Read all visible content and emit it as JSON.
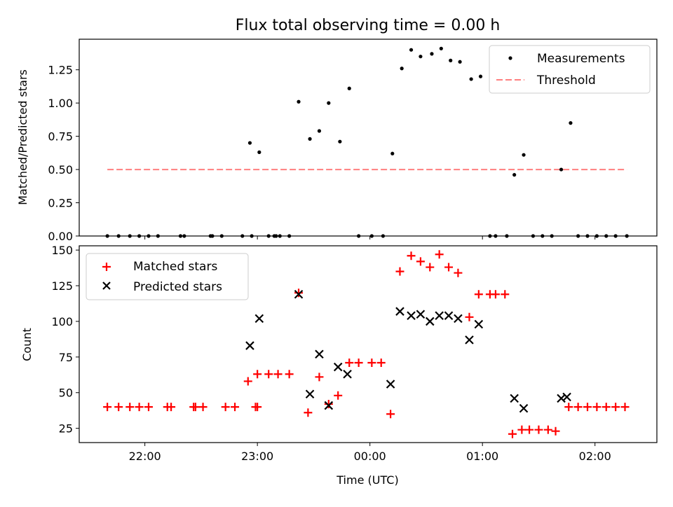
{
  "chart_data": [
    {
      "type": "scatter",
      "title": "Flux total observing time = 0.00 h",
      "xlabel": "",
      "ylabel": "Matched/Predicted stars",
      "xlim": [
        "21:25",
        "02:33"
      ],
      "ylim": [
        0,
        1.48
      ],
      "yticks": [
        "0.00",
        "0.25",
        "0.50",
        "0.75",
        "1.00",
        "1.25"
      ],
      "grid": false,
      "legend_position": "top-right",
      "threshold": {
        "name": "Threshold",
        "color": "#ff7f7f",
        "value": 0.5,
        "x_start": "21:40",
        "x_end": "02:17"
      },
      "series": [
        {
          "name": "Measurements",
          "color": "#000000",
          "marker": "dot",
          "points": [
            [
              "21:40",
              0.0
            ],
            [
              "21:46",
              0.0
            ],
            [
              "21:52",
              0.0
            ],
            [
              "21:57",
              0.0
            ],
            [
              "22:02",
              0.0
            ],
            [
              "22:07",
              0.0
            ],
            [
              "22:19",
              0.0
            ],
            [
              "22:21",
              0.0
            ],
            [
              "22:35",
              0.0
            ],
            [
              "22:36",
              0.0
            ],
            [
              "22:41",
              0.0
            ],
            [
              "22:52",
              0.0
            ],
            [
              "22:57",
              0.0
            ],
            [
              "23:09",
              0.0
            ],
            [
              "23:10",
              0.0
            ],
            [
              "22:56",
              0.7
            ],
            [
              "23:01",
              0.63
            ],
            [
              "23:06",
              0.0
            ],
            [
              "23:12",
              0.0
            ],
            [
              "23:17",
              0.0
            ],
            [
              "23:22",
              1.01
            ],
            [
              "23:28",
              0.73
            ],
            [
              "23:33",
              0.79
            ],
            [
              "23:38",
              1.0
            ],
            [
              "23:44",
              0.71
            ],
            [
              "23:49",
              1.11
            ],
            [
              "23:54",
              0.0
            ],
            [
              "00:01",
              0.0
            ],
            [
              "00:07",
              0.0
            ],
            [
              "00:12",
              0.62
            ],
            [
              "00:17",
              1.26
            ],
            [
              "00:22",
              1.4
            ],
            [
              "00:27",
              1.35
            ],
            [
              "00:33",
              1.37
            ],
            [
              "00:38",
              1.41
            ],
            [
              "00:43",
              1.32
            ],
            [
              "00:48",
              1.31
            ],
            [
              "00:54",
              1.18
            ],
            [
              "00:59",
              1.2
            ],
            [
              "01:04",
              0.0
            ],
            [
              "01:07",
              0.0
            ],
            [
              "01:13",
              0.0
            ],
            [
              "01:17",
              0.46
            ],
            [
              "01:22",
              0.61
            ],
            [
              "01:27",
              0.0
            ],
            [
              "01:32",
              0.0
            ],
            [
              "01:37",
              0.0
            ],
            [
              "01:42",
              0.5
            ],
            [
              "01:47",
              0.85
            ],
            [
              "01:51",
              0.0
            ],
            [
              "01:56",
              0.0
            ],
            [
              "02:01",
              0.0
            ],
            [
              "02:06",
              0.0
            ],
            [
              "02:11",
              0.0
            ],
            [
              "02:17",
              0.0
            ]
          ]
        }
      ]
    },
    {
      "type": "scatter",
      "title": "",
      "xlabel": "Time (UTC)",
      "ylabel": "Count",
      "xlim": [
        "21:25",
        "02:33"
      ],
      "ylim": [
        15,
        153
      ],
      "xticks": [
        "22:00",
        "23:00",
        "00:00",
        "01:00",
        "02:00"
      ],
      "yticks": [
        "25",
        "50",
        "75",
        "100",
        "125",
        "150"
      ],
      "grid": false,
      "legend_position": "top-left",
      "series": [
        {
          "name": "Matched stars",
          "color": "#ff0000",
          "marker": "plus",
          "points": [
            [
              "21:40",
              40
            ],
            [
              "21:46",
              40
            ],
            [
              "21:52",
              40
            ],
            [
              "21:57",
              40
            ],
            [
              "22:02",
              40
            ],
            [
              "22:12",
              40
            ],
            [
              "22:14",
              40
            ],
            [
              "22:26",
              40
            ],
            [
              "22:27",
              40
            ],
            [
              "22:31",
              40
            ],
            [
              "22:43",
              40
            ],
            [
              "22:48",
              40
            ],
            [
              "22:59",
              40
            ],
            [
              "23:00",
              40
            ],
            [
              "22:55",
              58
            ],
            [
              "23:00",
              63
            ],
            [
              "23:06",
              63
            ],
            [
              "23:11",
              63
            ],
            [
              "23:17",
              63
            ],
            [
              "23:22",
              120
            ],
            [
              "23:27",
              36
            ],
            [
              "23:33",
              61
            ],
            [
              "23:38",
              42
            ],
            [
              "23:43",
              48
            ],
            [
              "23:49",
              71
            ],
            [
              "23:54",
              71
            ],
            [
              "00:01",
              71
            ],
            [
              "00:06",
              71
            ],
            [
              "00:11",
              35
            ],
            [
              "00:16",
              135
            ],
            [
              "00:22",
              146
            ],
            [
              "00:27",
              142
            ],
            [
              "00:32",
              138
            ],
            [
              "00:37",
              147
            ],
            [
              "00:42",
              138
            ],
            [
              "00:47",
              134
            ],
            [
              "00:53",
              103
            ],
            [
              "00:58",
              119
            ],
            [
              "01:04",
              119
            ],
            [
              "01:07",
              119
            ],
            [
              "01:12",
              119
            ],
            [
              "01:16",
              21
            ],
            [
              "01:21",
              24
            ],
            [
              "01:25",
              24
            ],
            [
              "01:30",
              24
            ],
            [
              "01:35",
              24
            ],
            [
              "01:39",
              23
            ],
            [
              "01:46",
              40
            ],
            [
              "01:51",
              40
            ],
            [
              "01:56",
              40
            ],
            [
              "02:01",
              40
            ],
            [
              "02:06",
              40
            ],
            [
              "02:11",
              40
            ],
            [
              "02:16",
              40
            ]
          ]
        },
        {
          "name": "Predicted stars",
          "color": "#000000",
          "marker": "x",
          "points": [
            [
              "22:56",
              83
            ],
            [
              "23:01",
              102
            ],
            [
              "23:22",
              119
            ],
            [
              "23:28",
              49
            ],
            [
              "23:33",
              77
            ],
            [
              "23:38",
              41
            ],
            [
              "23:43",
              68
            ],
            [
              "23:48",
              63
            ],
            [
              "00:11",
              56
            ],
            [
              "00:16",
              107
            ],
            [
              "00:22",
              104
            ],
            [
              "00:27",
              105
            ],
            [
              "00:32",
              100
            ],
            [
              "00:37",
              104
            ],
            [
              "00:42",
              104
            ],
            [
              "00:47",
              102
            ],
            [
              "00:53",
              87
            ],
            [
              "00:58",
              98
            ],
            [
              "01:17",
              46
            ],
            [
              "01:22",
              39
            ],
            [
              "01:42",
              46
            ],
            [
              "01:45",
              47
            ]
          ]
        }
      ]
    }
  ]
}
